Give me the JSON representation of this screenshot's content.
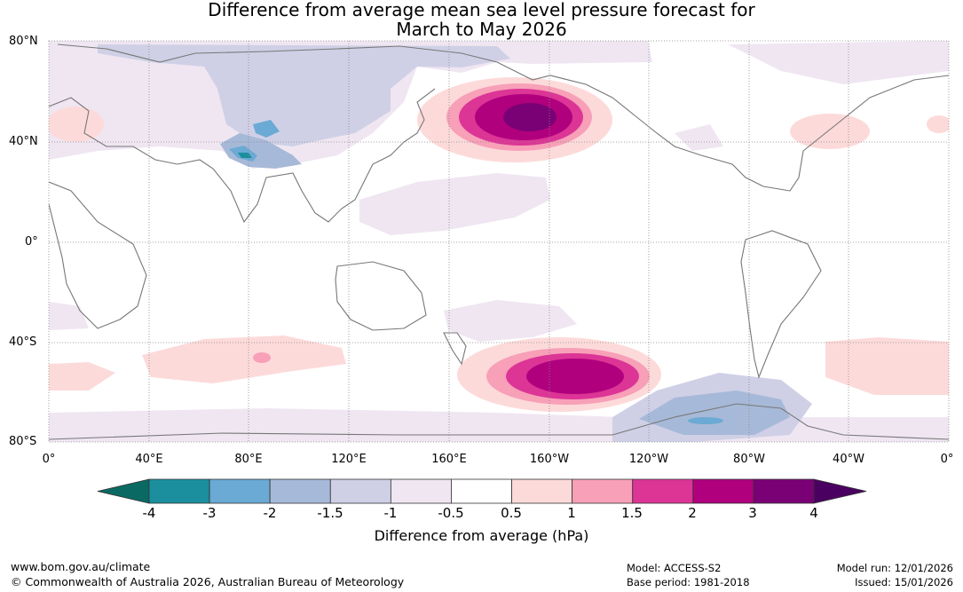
{
  "title": {
    "line1": "Difference from average mean sea level pressure forecast for",
    "line2": "March to May 2026"
  },
  "map": {
    "lat_labels": [
      "80°N",
      "40°N",
      "0°",
      "40°S",
      "80°S"
    ],
    "lon_labels": [
      "0°",
      "40°E",
      "80°E",
      "120°E",
      "160°E",
      "160°W",
      "120°W",
      "80°W",
      "40°W",
      "0°"
    ],
    "anomalies": [
      {
        "region": "North Pacific",
        "level": "4"
      },
      {
        "region": "South Pacific",
        "level": "3"
      },
      {
        "region": "Tibet",
        "level": "-3"
      },
      {
        "region": "West Antarctica",
        "level": "-2"
      }
    ]
  },
  "colorbar": {
    "colors": [
      "#0a6a63",
      "#1b8f9e",
      "#6baad4",
      "#a7b9d8",
      "#cfd0e6",
      "#efe6f2",
      "#ffffff",
      "#fddada",
      "#f7a0b8",
      "#dc3596",
      "#b0007e",
      "#7a0075",
      "#4a0061"
    ],
    "ticks": [
      "-4",
      "-3",
      "-2",
      "-1.5",
      "-1",
      "-0.5",
      "0.5",
      "1",
      "1.5",
      "2",
      "3",
      "4"
    ],
    "label": "Difference from average (hPa)"
  },
  "footer": {
    "website": "www.bom.gov.au/climate",
    "copyright": "© Commonwealth of Australia 2026, Australian Bureau of Meteorology",
    "model": "Model: ACCESS-S2",
    "base_period": "Base period: 1981-2018",
    "model_run": "Model run: 12/01/2026",
    "issued": "Issued: 15/01/2026"
  }
}
